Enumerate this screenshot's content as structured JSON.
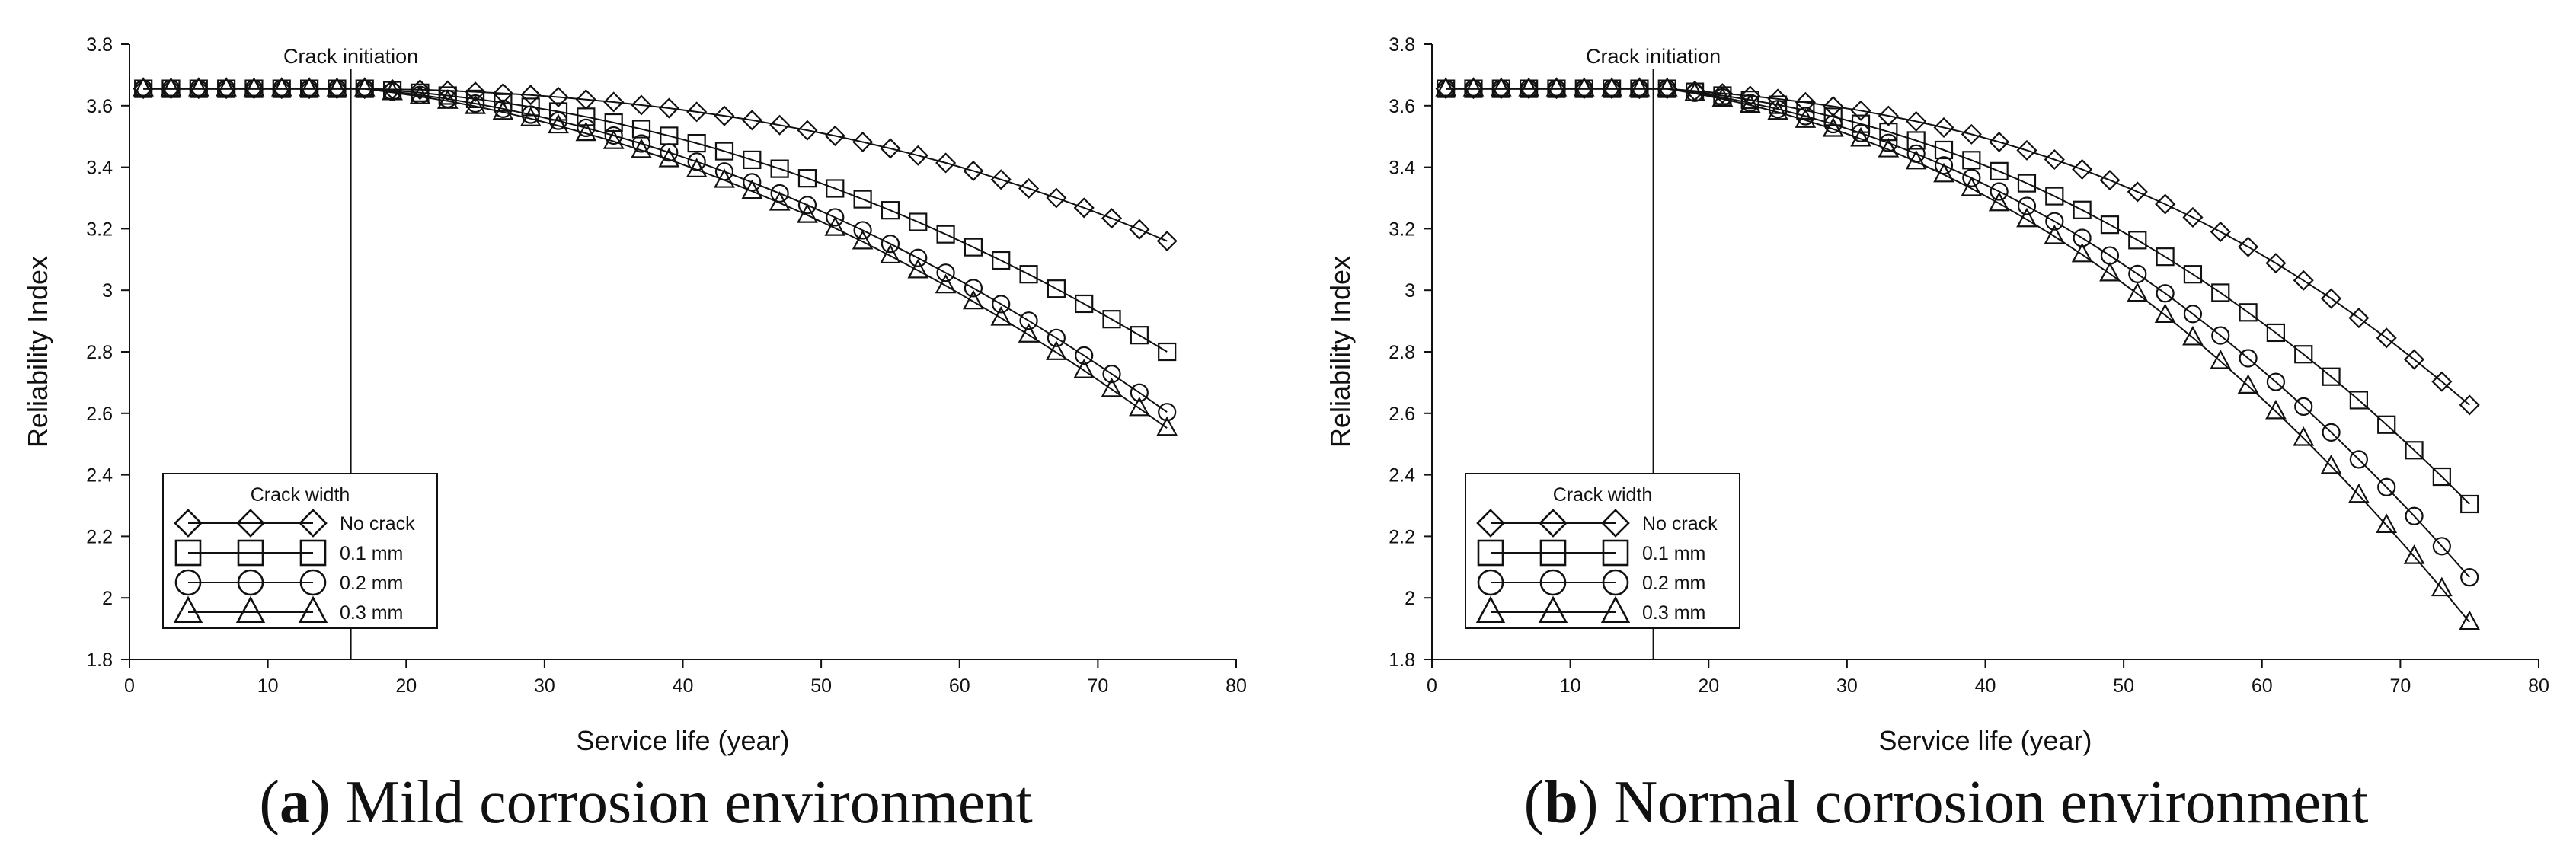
{
  "figure": {
    "panels": [
      {
        "label": "a",
        "caption": ") Mild corrosion environment",
        "caption_prefix": "("
      },
      {
        "label": "b",
        "caption": ") Normal corrosion environment",
        "caption_prefix": "("
      }
    ]
  },
  "chart_data": [
    {
      "type": "line",
      "panel": "a",
      "title": "",
      "xlabel": "Service life (year)",
      "ylabel": "Reliability Index",
      "xlim": [
        0,
        80
      ],
      "ylim": [
        1.8,
        3.8
      ],
      "xticks": [
        0,
        10,
        20,
        30,
        40,
        50,
        60,
        70,
        80
      ],
      "yticks": [
        1.8,
        2,
        2.2,
        2.4,
        2.6,
        2.8,
        3,
        3.2,
        3.4,
        3.6,
        3.8
      ],
      "ytick_labels": [
        "1.8",
        "2",
        "2.2",
        "2.4",
        "2.6",
        "2.8",
        "3",
        "3.2",
        "3.4",
        "3.6",
        "3.8"
      ],
      "grid": false,
      "annotation": {
        "text": "Crack initiation",
        "x": 16
      },
      "legend": {
        "title": "Crack width",
        "placement": "bottom-left"
      },
      "x": [
        1,
        3,
        5,
        7,
        9,
        11,
        13,
        15,
        17,
        19,
        21,
        23,
        25,
        27,
        29,
        31,
        33,
        35,
        37,
        39,
        41,
        43,
        45,
        47,
        49,
        51,
        53,
        55,
        57,
        59,
        61,
        63,
        65,
        67,
        69,
        71,
        73,
        75
      ],
      "series": [
        {
          "name": "No crack",
          "marker": "diamond",
          "values": [
            3.655,
            3.655,
            3.655,
            3.655,
            3.655,
            3.655,
            3.655,
            3.655,
            3.655,
            3.653,
            3.652,
            3.649,
            3.645,
            3.64,
            3.635,
            3.628,
            3.62,
            3.612,
            3.602,
            3.592,
            3.58,
            3.567,
            3.553,
            3.537,
            3.52,
            3.502,
            3.482,
            3.461,
            3.438,
            3.414,
            3.388,
            3.36,
            3.331,
            3.3,
            3.268,
            3.234,
            3.198,
            3.16
          ]
        },
        {
          "name": "0.1 mm",
          "marker": "square",
          "values": [
            3.655,
            3.655,
            3.655,
            3.655,
            3.655,
            3.655,
            3.655,
            3.655,
            3.655,
            3.65,
            3.642,
            3.633,
            3.622,
            3.61,
            3.596,
            3.581,
            3.564,
            3.545,
            3.524,
            3.502,
            3.478,
            3.452,
            3.424,
            3.395,
            3.364,
            3.331,
            3.296,
            3.26,
            3.222,
            3.182,
            3.14,
            3.097,
            3.052,
            3.005,
            2.956,
            2.906,
            2.854,
            2.8
          ]
        },
        {
          "name": "0.2 mm",
          "marker": "circle",
          "values": [
            3.655,
            3.655,
            3.655,
            3.655,
            3.655,
            3.655,
            3.655,
            3.655,
            3.655,
            3.646,
            3.635,
            3.622,
            3.607,
            3.59,
            3.571,
            3.551,
            3.528,
            3.503,
            3.477,
            3.448,
            3.418,
            3.386,
            3.351,
            3.315,
            3.277,
            3.237,
            3.195,
            3.151,
            3.105,
            3.057,
            3.007,
            2.955,
            2.901,
            2.845,
            2.788,
            2.728,
            2.667,
            2.604
          ]
        },
        {
          "name": "0.3 mm",
          "marker": "triangle",
          "values": [
            3.655,
            3.655,
            3.655,
            3.655,
            3.655,
            3.655,
            3.655,
            3.655,
            3.655,
            3.643,
            3.63,
            3.615,
            3.598,
            3.579,
            3.558,
            3.535,
            3.51,
            3.484,
            3.455,
            3.425,
            3.392,
            3.358,
            3.322,
            3.284,
            3.244,
            3.202,
            3.158,
            3.112,
            3.064,
            3.015,
            2.963,
            2.91,
            2.855,
            2.798,
            2.739,
            2.678,
            2.616,
            2.552
          ]
        }
      ]
    },
    {
      "type": "line",
      "panel": "b",
      "title": "",
      "xlabel": "Service life (year)",
      "ylabel": "Reliability Index",
      "xlim": [
        0,
        80
      ],
      "ylim": [
        1.8,
        3.8
      ],
      "xticks": [
        0,
        10,
        20,
        30,
        40,
        50,
        60,
        70,
        80
      ],
      "yticks": [
        1.8,
        2,
        2.2,
        2.4,
        2.6,
        2.8,
        3,
        3.2,
        3.4,
        3.6,
        3.8
      ],
      "ytick_labels": [
        "1.8",
        "2",
        "2.2",
        "2.4",
        "2.6",
        "2.8",
        "3",
        "3.2",
        "3.4",
        "3.6",
        "3.8"
      ],
      "grid": false,
      "annotation": {
        "text": "Crack initiation",
        "x": 16
      },
      "legend": {
        "title": "Crack width",
        "placement": "bottom-left"
      },
      "x": [
        1,
        3,
        5,
        7,
        9,
        11,
        13,
        15,
        17,
        19,
        21,
        23,
        25,
        27,
        29,
        31,
        33,
        35,
        37,
        39,
        41,
        43,
        45,
        47,
        49,
        51,
        53,
        55,
        57,
        59,
        61,
        63,
        65,
        67,
        69,
        71,
        73,
        75
      ],
      "series": [
        {
          "name": "No crack",
          "marker": "diamond",
          "values": [
            3.655,
            3.655,
            3.655,
            3.655,
            3.655,
            3.655,
            3.655,
            3.655,
            3.655,
            3.648,
            3.64,
            3.632,
            3.622,
            3.611,
            3.598,
            3.584,
            3.567,
            3.549,
            3.529,
            3.507,
            3.482,
            3.455,
            3.425,
            3.393,
            3.358,
            3.32,
            3.28,
            3.237,
            3.19,
            3.141,
            3.088,
            3.032,
            2.973,
            2.91,
            2.845,
            2.775,
            2.703,
            2.627
          ]
        },
        {
          "name": "0.1 mm",
          "marker": "square",
          "values": [
            3.655,
            3.655,
            3.655,
            3.655,
            3.655,
            3.655,
            3.655,
            3.655,
            3.655,
            3.645,
            3.633,
            3.619,
            3.603,
            3.585,
            3.564,
            3.541,
            3.515,
            3.487,
            3.456,
            3.423,
            3.387,
            3.348,
            3.306,
            3.261,
            3.213,
            3.163,
            3.109,
            3.052,
            2.992,
            2.928,
            2.862,
            2.792,
            2.719,
            2.643,
            2.563,
            2.48,
            2.394,
            2.305
          ]
        },
        {
          "name": "0.2 mm",
          "marker": "circle",
          "values": [
            3.655,
            3.655,
            3.655,
            3.655,
            3.655,
            3.655,
            3.655,
            3.655,
            3.655,
            3.642,
            3.627,
            3.609,
            3.589,
            3.566,
            3.54,
            3.511,
            3.479,
            3.444,
            3.406,
            3.365,
            3.321,
            3.274,
            3.224,
            3.17,
            3.113,
            3.053,
            2.99,
            2.923,
            2.853,
            2.779,
            2.702,
            2.622,
            2.538,
            2.45,
            2.36,
            2.266,
            2.168,
            2.067
          ]
        },
        {
          "name": "0.3 mm",
          "marker": "triangle",
          "values": [
            3.655,
            3.655,
            3.655,
            3.655,
            3.655,
            3.655,
            3.655,
            3.655,
            3.655,
            3.64,
            3.622,
            3.602,
            3.579,
            3.553,
            3.524,
            3.492,
            3.457,
            3.418,
            3.376,
            3.331,
            3.282,
            3.23,
            3.175,
            3.116,
            3.054,
            2.988,
            2.919,
            2.846,
            2.769,
            2.689,
            2.606,
            2.519,
            2.428,
            2.334,
            2.236,
            2.135,
            2.03,
            1.921
          ]
        }
      ]
    }
  ]
}
